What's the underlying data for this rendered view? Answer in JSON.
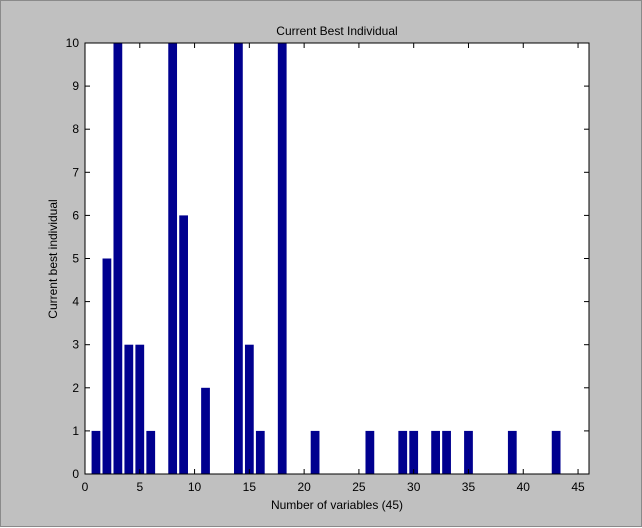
{
  "chart_data": {
    "type": "bar",
    "title": "Current Best Individual",
    "xlabel": "Number of variables (45)",
    "ylabel": "Current best individual",
    "xlim": [
      0,
      46
    ],
    "ylim": [
      0,
      10
    ],
    "xticks": [
      0,
      5,
      10,
      15,
      20,
      25,
      30,
      35,
      40,
      45
    ],
    "yticks": [
      0,
      1,
      2,
      3,
      4,
      5,
      6,
      7,
      8,
      9,
      10
    ],
    "grid": false,
    "bar_color": "#00008f",
    "x": [
      1,
      2,
      3,
      4,
      5,
      6,
      7,
      8,
      9,
      10,
      11,
      12,
      13,
      14,
      15,
      16,
      17,
      18,
      19,
      20,
      21,
      22,
      23,
      24,
      25,
      26,
      27,
      28,
      29,
      30,
      31,
      32,
      33,
      34,
      35,
      36,
      37,
      38,
      39,
      40,
      41,
      42,
      43,
      44,
      45
    ],
    "values": [
      1,
      5,
      10,
      3,
      3,
      1,
      0,
      10,
      6,
      0,
      2,
      0,
      0,
      10,
      3,
      1,
      0,
      10,
      0,
      0,
      1,
      0,
      0,
      0,
      0,
      1,
      0,
      0,
      1,
      1,
      0,
      1,
      1,
      0,
      1,
      0,
      0,
      0,
      1,
      0,
      0,
      0,
      1,
      0,
      0
    ]
  },
  "colors": {
    "figure_background": "#c0c0c0",
    "axes_background": "#ffffff",
    "bar": "#00008f"
  }
}
